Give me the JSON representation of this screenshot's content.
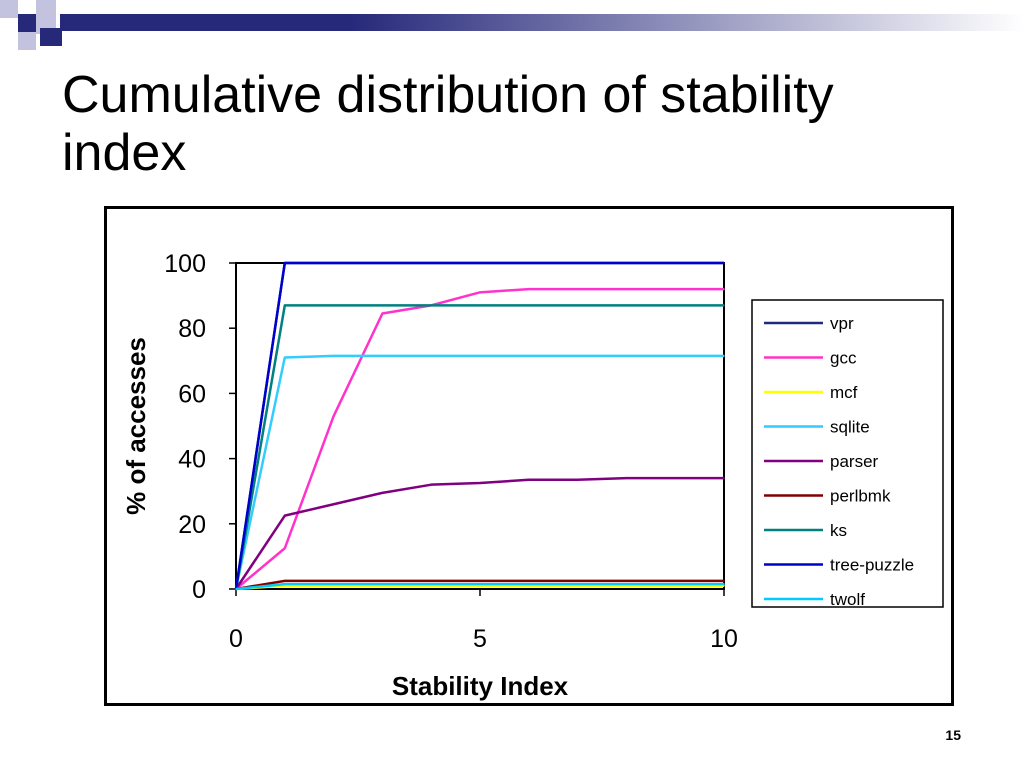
{
  "slide": {
    "title": "Cumulative distribution of stability\nindex",
    "page_number": "15"
  },
  "theme": {
    "band_color": "#26287A",
    "square_dark": "#26287A",
    "square_light": "#C3C3DF"
  },
  "chart_data": {
    "type": "line",
    "title": "",
    "xlabel": "Stability Index",
    "ylabel": "% of accesses",
    "xlim": [
      0,
      10
    ],
    "ylim": [
      0,
      100
    ],
    "x_ticks": [
      "0",
      "5",
      "10"
    ],
    "y_ticks": [
      "0",
      "20",
      "40",
      "60",
      "80",
      "100"
    ],
    "legend_position": "right",
    "grid": false,
    "series": [
      {
        "name": "vpr",
        "color": "#1F2A7A",
        "x": [
          0,
          1,
          2,
          3,
          4,
          5,
          6,
          7,
          8,
          9,
          10
        ],
        "y": [
          0,
          100,
          100,
          100,
          100,
          100,
          100,
          100,
          100,
          100,
          100
        ]
      },
      {
        "name": "gcc",
        "color": "#FF33CC",
        "x": [
          0,
          1,
          2,
          3,
          4,
          5,
          6,
          7,
          8,
          9,
          10
        ],
        "y": [
          0,
          12.5,
          53,
          84.5,
          87,
          91,
          92,
          92,
          92,
          92,
          92
        ]
      },
      {
        "name": "mcf",
        "color": "#FFFF00",
        "x": [
          0,
          1,
          2,
          3,
          4,
          5,
          6,
          7,
          8,
          9,
          10
        ],
        "y": [
          0,
          1,
          1,
          1,
          1,
          1,
          1,
          1,
          1,
          1,
          1
        ]
      },
      {
        "name": "sqlite",
        "color": "#33CCFF",
        "x": [
          0,
          1,
          2,
          3,
          4,
          5,
          6,
          7,
          8,
          9,
          10
        ],
        "y": [
          0,
          71,
          71.5,
          71.5,
          71.5,
          71.5,
          71.5,
          71.5,
          71.5,
          71.5,
          71.5
        ]
      },
      {
        "name": "parser",
        "color": "#800080",
        "x": [
          0,
          1,
          2,
          3,
          4,
          5,
          6,
          7,
          8,
          9,
          10
        ],
        "y": [
          0,
          22.5,
          26,
          29.5,
          32,
          32.5,
          33.5,
          33.5,
          34,
          34,
          34
        ]
      },
      {
        "name": "perlbmk",
        "color": "#800000",
        "x": [
          0,
          1,
          2,
          3,
          4,
          5,
          6,
          7,
          8,
          9,
          10
        ],
        "y": [
          0,
          2.5,
          2.5,
          2.5,
          2.5,
          2.5,
          2.5,
          2.5,
          2.5,
          2.5,
          2.5
        ]
      },
      {
        "name": "ks",
        "color": "#008080",
        "x": [
          0,
          1,
          2,
          3,
          4,
          5,
          6,
          7,
          8,
          9,
          10
        ],
        "y": [
          0,
          87,
          87,
          87,
          87,
          87,
          87,
          87,
          87,
          87,
          87
        ]
      },
      {
        "name": "tree-puzzle",
        "color": "#0000CC",
        "x": [
          0,
          1,
          2,
          3,
          4,
          5,
          6,
          7,
          8,
          9,
          10
        ],
        "y": [
          0,
          100,
          100,
          100,
          100,
          100,
          100,
          100,
          100,
          100,
          100
        ]
      },
      {
        "name": "twolf",
        "color": "#00CCFF",
        "x": [
          0,
          1,
          2,
          3,
          4,
          5,
          6,
          7,
          8,
          9,
          10
        ],
        "y": [
          0,
          1.5,
          1.5,
          1.5,
          1.5,
          1.5,
          1.5,
          1.5,
          1.5,
          1.5,
          1.5
        ]
      }
    ]
  }
}
